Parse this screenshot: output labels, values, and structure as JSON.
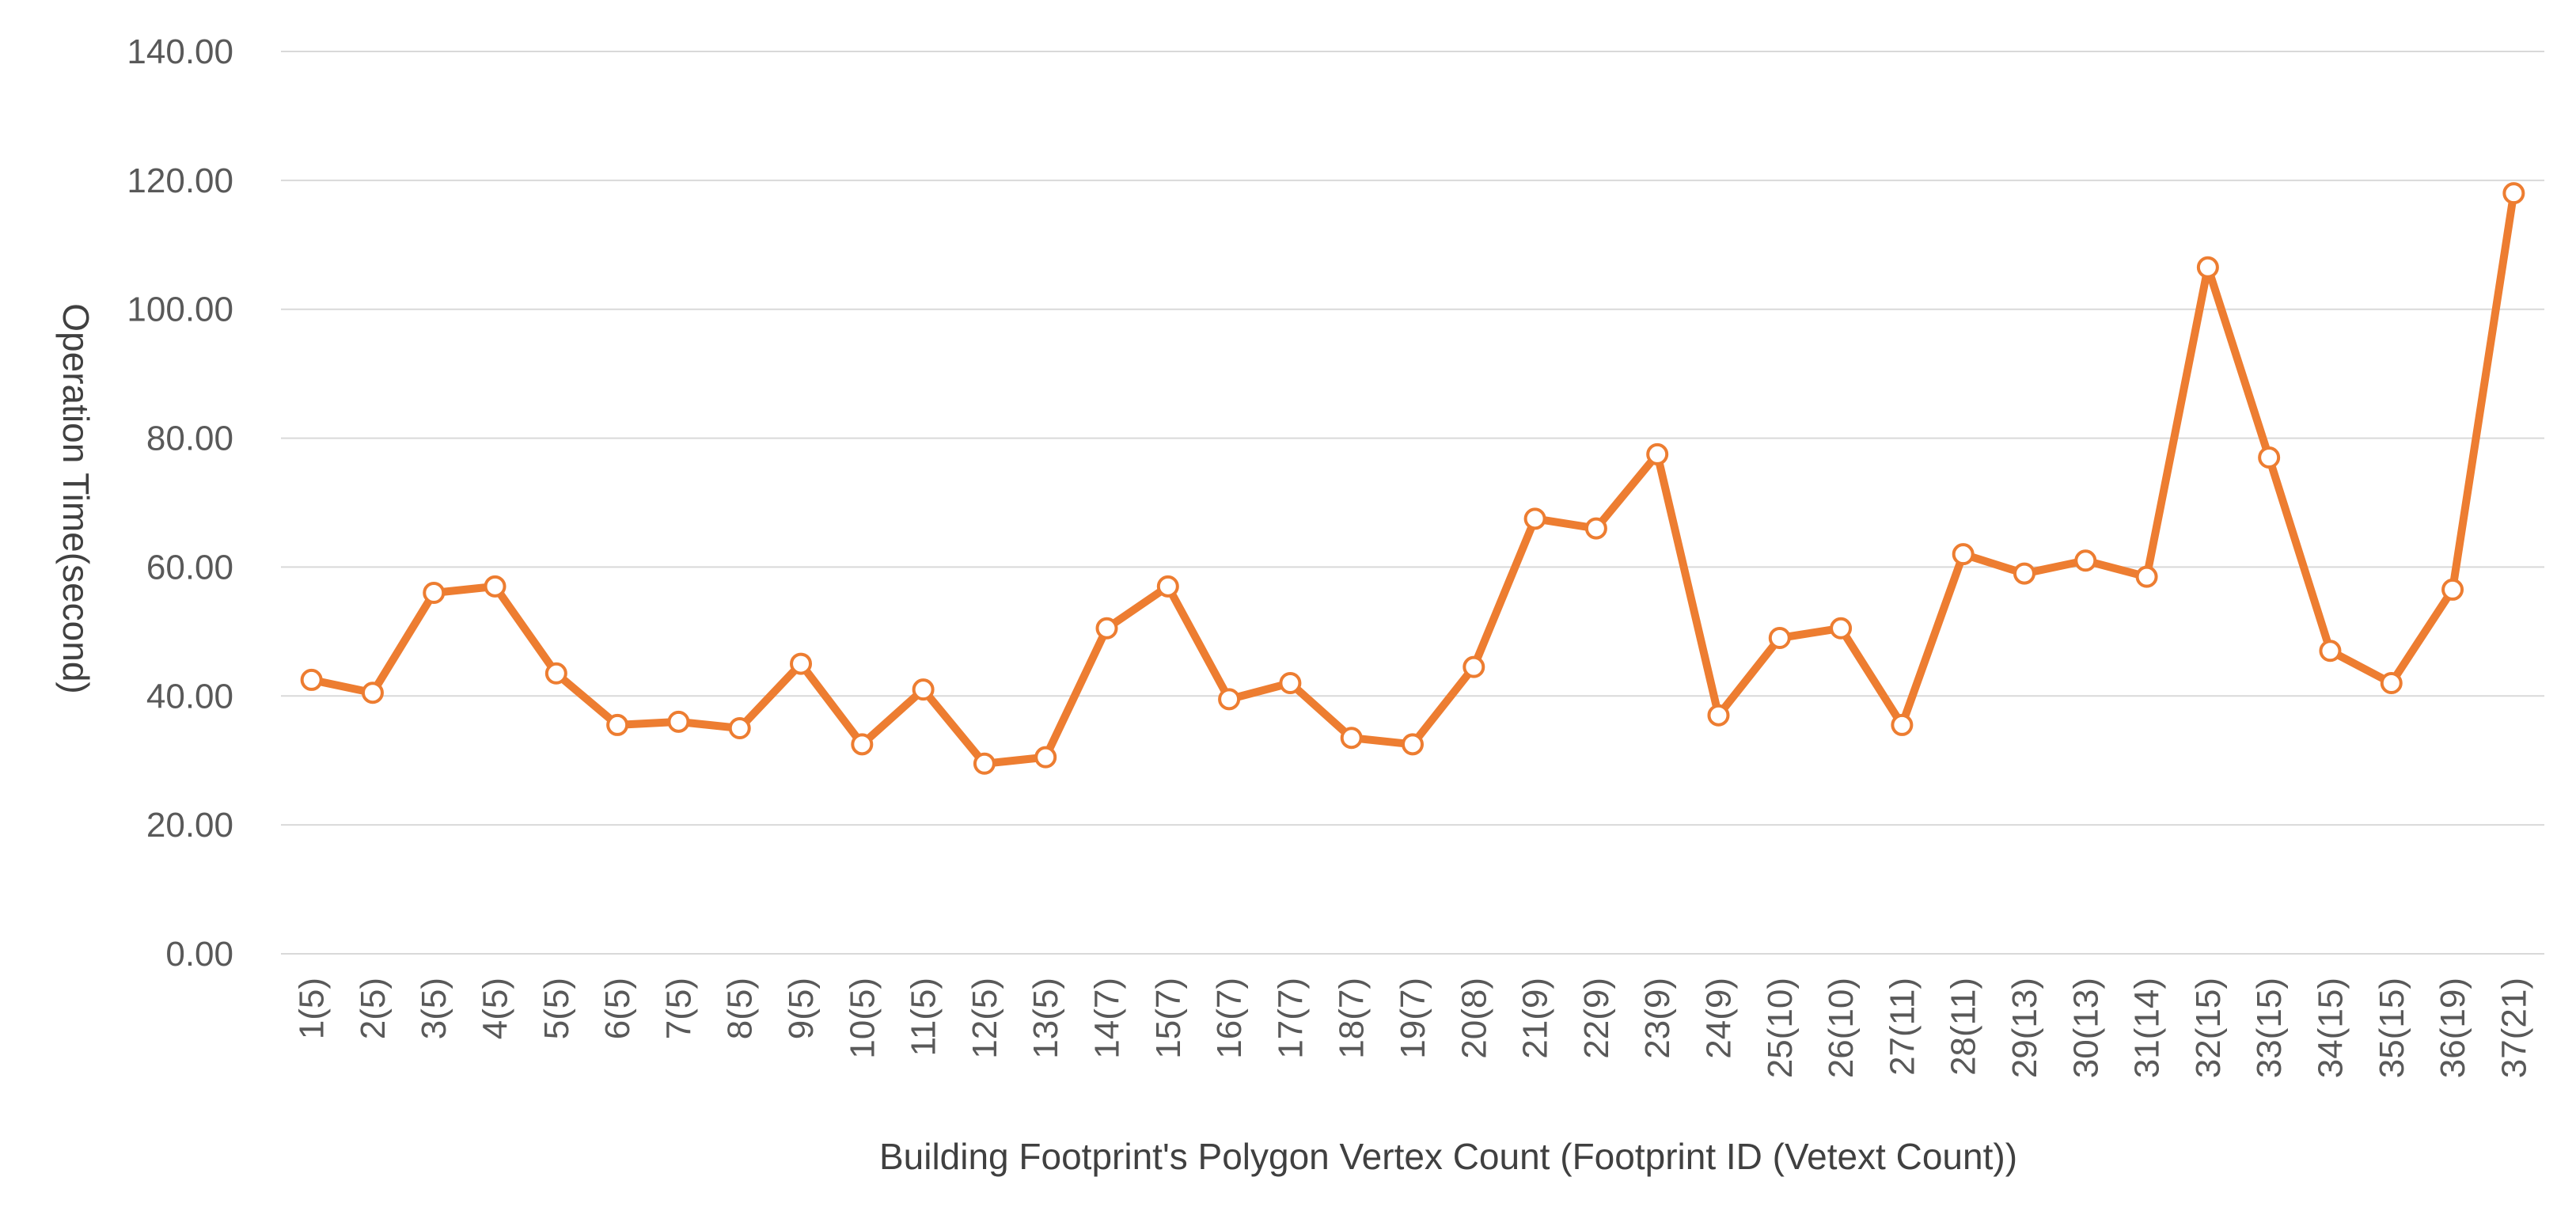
{
  "chart_data": {
    "type": "line",
    "title": "",
    "xlabel": "Building Footprint's Polygon Vertex Count  (Footprint ID (Vetext Count))",
    "ylabel": "Operation Time(second)",
    "ylim": [
      0,
      140
    ],
    "yticks": [
      "0.00",
      "20.00",
      "40.00",
      "60.00",
      "80.00",
      "100.00",
      "120.00",
      "140.00"
    ],
    "grid": true,
    "legend": "none",
    "categories": [
      "1(5)",
      "2(5)",
      "3(5)",
      "4(5)",
      "5(5)",
      "6(5)",
      "7(5)",
      "8(5)",
      "9(5)",
      "10(5)",
      "11(5)",
      "12(5)",
      "13(5)",
      "14(7)",
      "15(7)",
      "16(7)",
      "17(7)",
      "18(7)",
      "19(7)",
      "20(8)",
      "21(9)",
      "22(9)",
      "23(9)",
      "24(9)",
      "25(10)",
      "26(10)",
      "27(11)",
      "28(11)",
      "29(13)",
      "30(13)",
      "31(14)",
      "32(15)",
      "33(15)",
      "34(15)",
      "35(15)",
      "36(19)",
      "37(21)"
    ],
    "series": [
      {
        "values": [
          42.5,
          40.5,
          56.0,
          57.0,
          43.5,
          35.5,
          36.0,
          35.0,
          45.0,
          32.5,
          41.0,
          29.5,
          30.5,
          50.5,
          57.0,
          39.5,
          42.0,
          33.5,
          32.5,
          44.5,
          67.5,
          66.0,
          77.5,
          37.0,
          49.0,
          50.5,
          35.5,
          62.0,
          59.0,
          61.0,
          58.5,
          106.5,
          77.0,
          47.0,
          42.0,
          56.5,
          118.0
        ],
        "color": "#ed7d31"
      }
    ]
  }
}
